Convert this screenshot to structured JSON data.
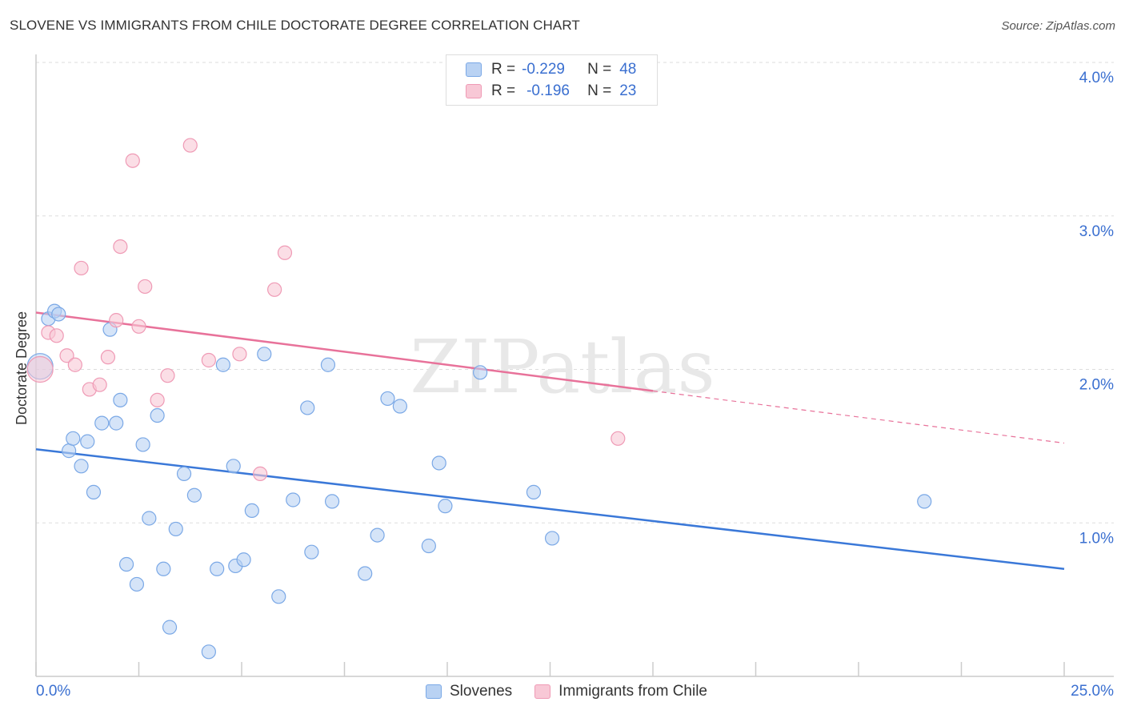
{
  "title": "SLOVENE VS IMMIGRANTS FROM CHILE DOCTORATE DEGREE CORRELATION CHART",
  "source": "Source: ZipAtlas.com",
  "watermark": "ZIPatlas",
  "legend": {
    "rows": [
      {
        "r_label": "R =",
        "r_value": "-0.229",
        "n_label": "N =",
        "n_value": "48"
      },
      {
        "r_label": "R =",
        "r_value": "-0.196",
        "n_label": "N =",
        "n_value": "23"
      }
    ]
  },
  "bottom_legend": [
    "Slovenes",
    "Immigrants from Chile"
  ],
  "colors": {
    "blue": "#3a78d8",
    "blue_fill": "#b9d2f3",
    "blue_stroke": "#7aa8e6",
    "pink": "#e8729a",
    "pink_fill": "#f8c8d6",
    "pink_stroke": "#ef9ab5",
    "axis_text": "#3a6fd0",
    "grid": "#dddddd"
  },
  "chart_data": {
    "type": "scatter",
    "title": "SLOVENE VS IMMIGRANTS FROM CHILE DOCTORATE DEGREE CORRELATION CHART",
    "xlabel": "",
    "ylabel": "Doctorate Degree",
    "xlim": [
      0,
      25
    ],
    "ylim": [
      0,
      4.0
    ],
    "x_tick_labels": [
      "0.0%",
      "25.0%"
    ],
    "y_ticks": [
      1.0,
      2.0,
      3.0,
      4.0
    ],
    "y_tick_labels": [
      "1.0%",
      "2.0%",
      "3.0%",
      "4.0%"
    ],
    "series": [
      {
        "name": "Slovenes",
        "color": "blue",
        "r": -0.229,
        "n": 48,
        "trend": {
          "x0": 0,
          "y0": 1.48,
          "x1": 25,
          "y1": 0.7,
          "dashed_from": null
        },
        "points": [
          [
            0.1,
            2.02
          ],
          [
            0.3,
            2.33
          ],
          [
            0.45,
            2.38
          ],
          [
            0.55,
            2.36
          ],
          [
            0.8,
            1.47
          ],
          [
            0.9,
            1.55
          ],
          [
            1.1,
            1.37
          ],
          [
            1.25,
            1.53
          ],
          [
            1.4,
            1.2
          ],
          [
            1.6,
            1.65
          ],
          [
            1.8,
            2.26
          ],
          [
            1.95,
            1.65
          ],
          [
            2.05,
            1.8
          ],
          [
            2.2,
            0.73
          ],
          [
            2.45,
            0.6
          ],
          [
            2.6,
            1.51
          ],
          [
            2.75,
            1.03
          ],
          [
            2.95,
            1.7
          ],
          [
            3.1,
            0.7
          ],
          [
            3.25,
            0.32
          ],
          [
            3.4,
            0.96
          ],
          [
            3.6,
            1.32
          ],
          [
            3.85,
            1.18
          ],
          [
            4.2,
            0.16
          ],
          [
            4.4,
            0.7
          ],
          [
            4.55,
            2.03
          ],
          [
            4.8,
            1.37
          ],
          [
            4.85,
            0.72
          ],
          [
            5.05,
            0.76
          ],
          [
            5.25,
            1.08
          ],
          [
            5.55,
            2.1
          ],
          [
            5.9,
            0.52
          ],
          [
            6.25,
            1.15
          ],
          [
            6.6,
            1.75
          ],
          [
            6.7,
            0.81
          ],
          [
            7.1,
            2.03
          ],
          [
            7.2,
            1.14
          ],
          [
            8.0,
            0.67
          ],
          [
            8.3,
            0.92
          ],
          [
            8.55,
            1.81
          ],
          [
            8.85,
            1.76
          ],
          [
            9.55,
            0.85
          ],
          [
            9.8,
            1.39
          ],
          [
            9.95,
            1.11
          ],
          [
            10.8,
            1.98
          ],
          [
            12.1,
            1.2
          ],
          [
            12.55,
            0.9
          ],
          [
            21.6,
            1.14
          ]
        ]
      },
      {
        "name": "Immigrants from Chile",
        "color": "pink",
        "r": -0.196,
        "n": 23,
        "trend": {
          "x0": 0,
          "y0": 2.37,
          "x1": 25,
          "y1": 1.52,
          "dashed_from": 15
        },
        "points": [
          [
            0.1,
            2.0
          ],
          [
            0.3,
            2.24
          ],
          [
            0.5,
            2.22
          ],
          [
            0.75,
            2.09
          ],
          [
            0.95,
            2.03
          ],
          [
            1.1,
            2.66
          ],
          [
            1.3,
            1.87
          ],
          [
            1.55,
            1.9
          ],
          [
            1.75,
            2.08
          ],
          [
            1.95,
            2.32
          ],
          [
            2.05,
            2.8
          ],
          [
            2.35,
            3.36
          ],
          [
            2.5,
            2.28
          ],
          [
            2.65,
            2.54
          ],
          [
            2.95,
            1.8
          ],
          [
            3.2,
            1.96
          ],
          [
            3.75,
            3.46
          ],
          [
            4.2,
            2.06
          ],
          [
            4.95,
            2.1
          ],
          [
            5.45,
            1.32
          ],
          [
            5.8,
            2.52
          ],
          [
            6.05,
            2.76
          ],
          [
            14.15,
            1.55
          ]
        ]
      }
    ]
  }
}
